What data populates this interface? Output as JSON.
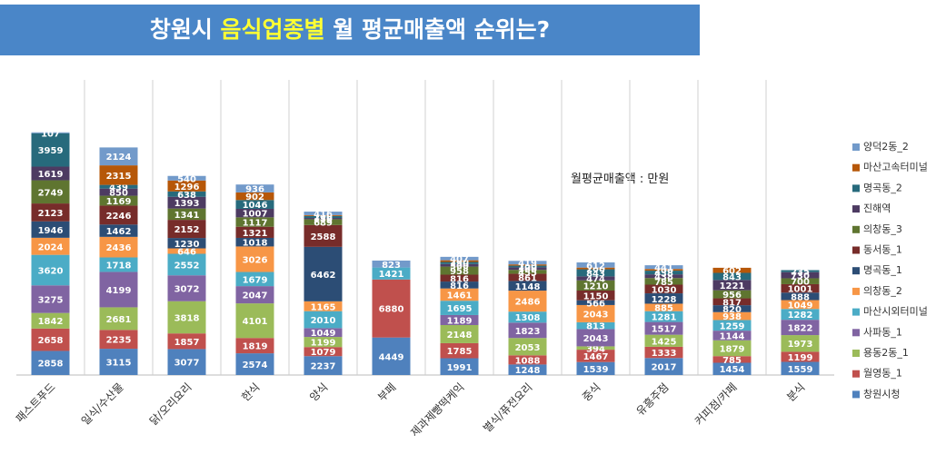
{
  "chart_data": {
    "type": "bar",
    "stacked": true,
    "title_parts": [
      "창원시 ",
      "음식업종별",
      " 월 평균매출액 순위는?"
    ],
    "annotation": "월평균매출액 : 만원",
    "categories": [
      "패스트푸드",
      "일식/수산물",
      "닭/오리요리",
      "한식",
      "양식",
      "부페",
      "제과제빵떡케익",
      "별식/퓨전요리",
      "중식",
      "유흥주점",
      "커피점/카페",
      "분식"
    ],
    "ylim": [
      0,
      35000
    ],
    "series": [
      {
        "name": "창원시청",
        "color": "#4f81bd",
        "values": [
          2858,
          3115,
          3077,
          2574,
          2237,
          4449,
          1991,
          1248,
          1539,
          2017,
          1454,
          1559
        ]
      },
      {
        "name": "월영동_1",
        "color": "#c0504d",
        "values": [
          2658,
          2235,
          1857,
          1819,
          1079,
          6880,
          1785,
          1088,
          1467,
          1333,
          785,
          1199
        ]
      },
      {
        "name": "용동2동_1",
        "color": "#9bbb59",
        "values": [
          1842,
          2681,
          3818,
          4101,
          1199,
          0,
          2148,
          2053,
          394,
          1425,
          1879,
          1973
        ]
      },
      {
        "name": "사파동_1",
        "color": "#8064a2",
        "values": [
          3275,
          4199,
          3072,
          2047,
          1049,
          0,
          1189,
          1823,
          2043,
          1517,
          1144,
          1822
        ]
      },
      {
        "name": "마산시외터미널",
        "color": "#4bacc6",
        "values": [
          3620,
          1718,
          2552,
          1679,
          2010,
          1421,
          1695,
          1308,
          813,
          1281,
          1259,
          1282
        ]
      },
      {
        "name": "의창동_2",
        "color": "#f79646",
        "values": [
          2024,
          2436,
          646,
          3026,
          1165,
          0,
          1461,
          2486,
          2043,
          885,
          938,
          1049
        ]
      },
      {
        "name": "명곡동_1",
        "color": "#2c4d75",
        "values": [
          1946,
          1462,
          1230,
          1018,
          6462,
          0,
          816,
          1148,
          566,
          1228,
          820,
          888
        ]
      },
      {
        "name": "동서동_1",
        "color": "#772c2a",
        "values": [
          2123,
          2246,
          2152,
          1321,
          2588,
          0,
          816,
          861,
          1150,
          1030,
          817,
          1001
        ]
      },
      {
        "name": "의창동_3",
        "color": "#5f7530",
        "values": [
          2749,
          1169,
          1341,
          1117,
          689,
          0,
          958,
          455,
          1210,
          785,
          956,
          700
        ]
      },
      {
        "name": "진해역",
        "color": "#4d3b62",
        "values": [
          1619,
          850,
          1393,
          1007,
          150,
          0,
          300,
          300,
          474,
          438,
          1221,
          730
        ]
      },
      {
        "name": "명곡동_2",
        "color": "#276a7c",
        "values": [
          3959,
          439,
          638,
          1046,
          236,
          0,
          250,
          200,
          843,
          438,
          843,
          235
        ]
      },
      {
        "name": "마산고속터미널",
        "color": "#b65708",
        "values": [
          0,
          2315,
          1296,
          902,
          100,
          0,
          200,
          150,
          200,
          200,
          602,
          0
        ]
      },
      {
        "name": "양덕2동_2",
        "color": "#729aca",
        "values": [
          107,
          2124,
          540,
          936,
          416,
          823,
          407,
          419,
          612,
          441,
          0,
          0
        ]
      }
    ]
  }
}
